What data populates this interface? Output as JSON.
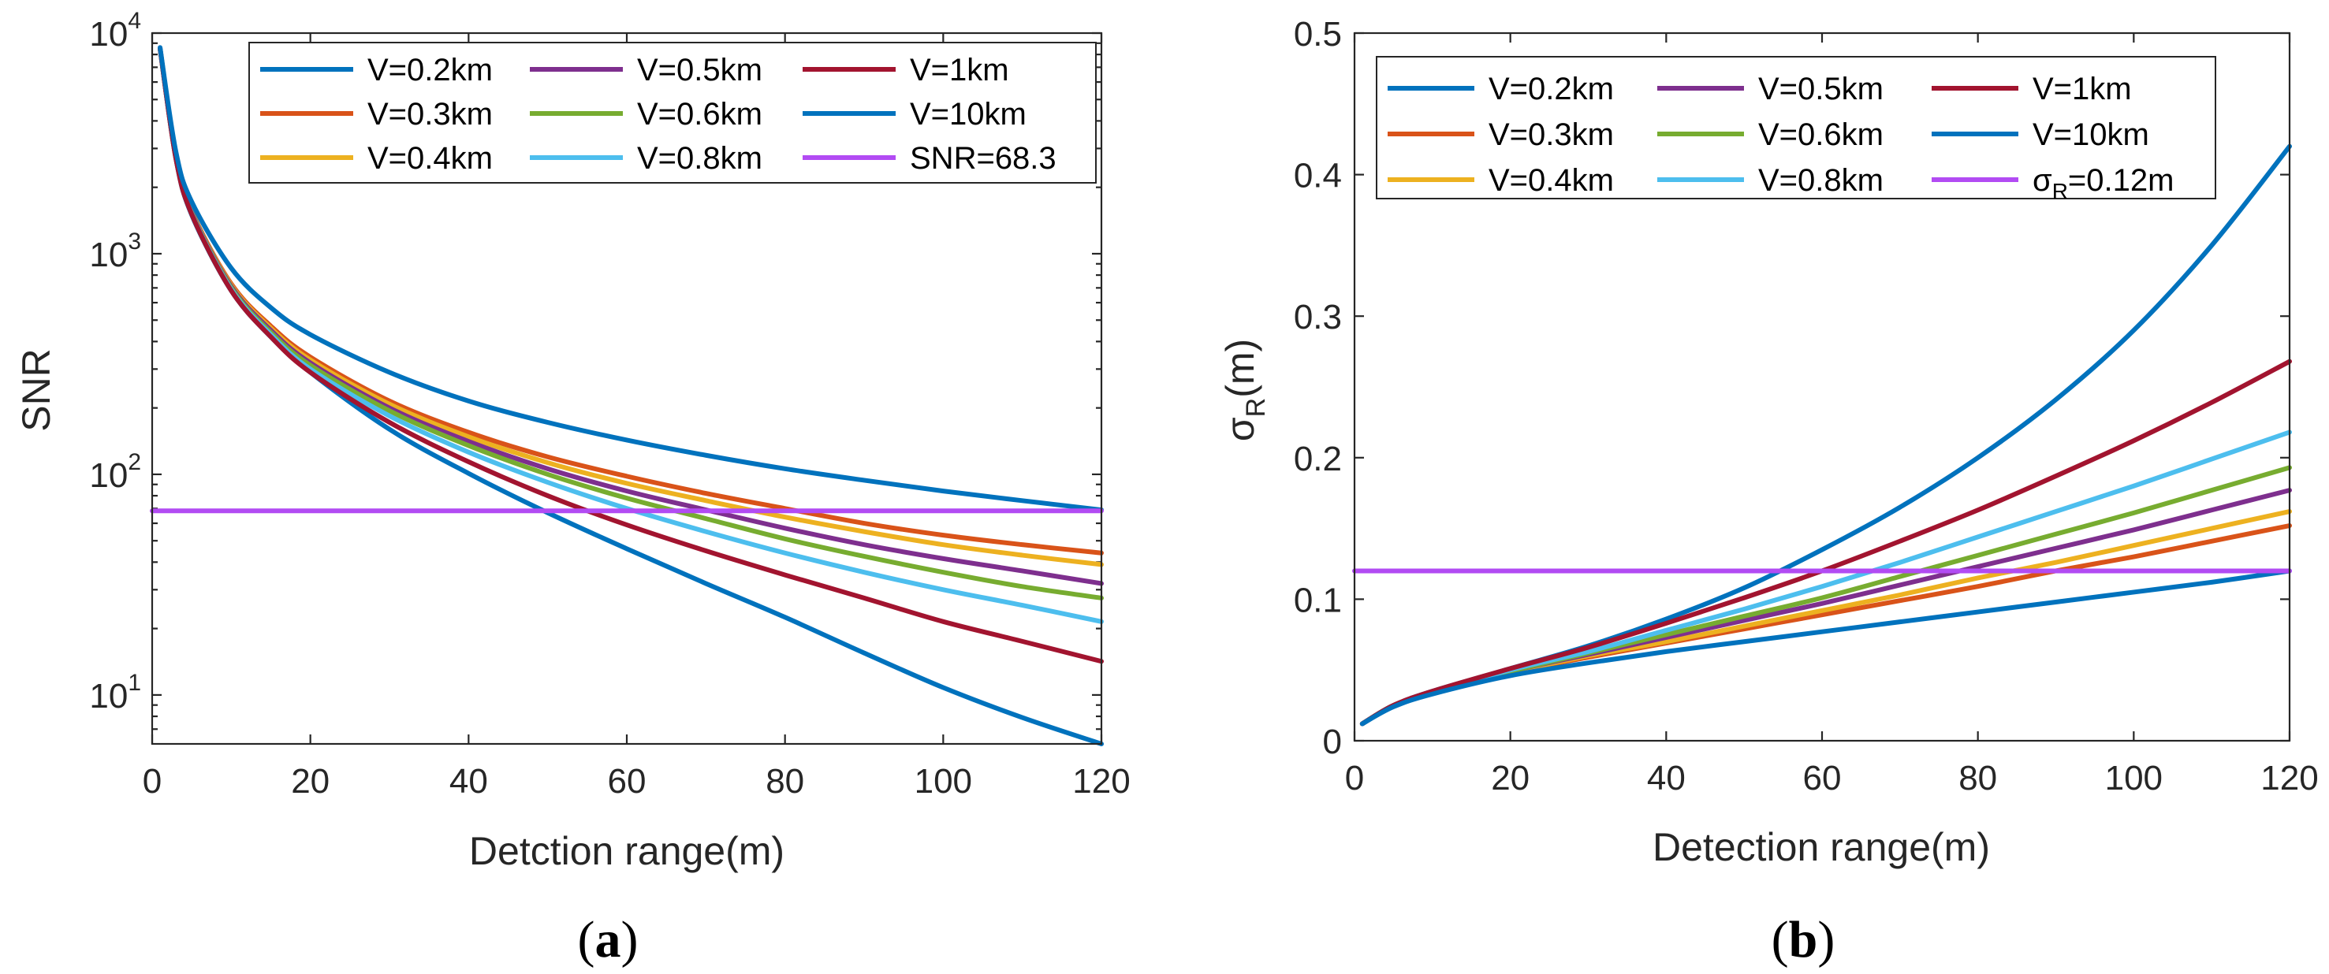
{
  "figure": {
    "caption_a": "a",
    "caption_b": "b"
  },
  "chart_data": [
    {
      "id": "a",
      "type": "line",
      "title": "",
      "xlabel": "Detction range(m)",
      "ylabel": "SNR",
      "yscale": "log",
      "xlim": [
        0,
        120
      ],
      "ylim": [
        6,
        10000
      ],
      "xticks": [
        0,
        20,
        40,
        60,
        80,
        100,
        120
      ],
      "yticks": [
        {
          "value": 10,
          "base": "10",
          "exp": "1"
        },
        {
          "value": 100,
          "base": "10",
          "exp": "2"
        },
        {
          "value": 1000,
          "base": "10",
          "exp": "3"
        },
        {
          "value": 10000,
          "base": "10",
          "exp": "4"
        }
      ],
      "legend_position": "top-right",
      "series": [
        {
          "name": "V=0.2km",
          "color": "#0072BD",
          "x": [
            1,
            3,
            5,
            10,
            15,
            20,
            30,
            40,
            50,
            60,
            70,
            80,
            90,
            100,
            110,
            120
          ],
          "values": [
            8500,
            2700,
            1500,
            680,
            420,
            290,
            160,
            101,
            67,
            46,
            32,
            22.5,
            15.5,
            10.8,
            7.9,
            5.9
          ]
        },
        {
          "name": "V=0.3km",
          "color": "#D95319",
          "x": [
            1,
            3,
            5,
            10,
            15,
            20,
            30,
            40,
            50,
            60,
            70,
            80,
            90,
            100,
            110,
            120
          ],
          "values": [
            8500,
            2750,
            1560,
            730,
            470,
            340,
            215,
            155,
            120,
            98,
            82,
            70,
            60,
            53,
            48,
            44
          ]
        },
        {
          "name": "V=0.4km",
          "color": "#EDB120",
          "x": [
            1,
            3,
            5,
            10,
            15,
            20,
            30,
            40,
            50,
            60,
            70,
            80,
            90,
            100,
            110,
            120
          ],
          "values": [
            8500,
            2740,
            1550,
            720,
            460,
            330,
            208,
            148,
            113,
            91,
            76,
            64,
            55,
            48,
            43,
            39
          ]
        },
        {
          "name": "V=0.5km",
          "color": "#7E2F8E",
          "x": [
            1,
            3,
            5,
            10,
            15,
            20,
            30,
            40,
            50,
            60,
            70,
            80,
            90,
            100,
            110,
            120
          ],
          "values": [
            8500,
            2730,
            1540,
            710,
            450,
            320,
            200,
            141,
            106,
            84,
            69,
            57,
            48,
            41.5,
            36.5,
            32
          ]
        },
        {
          "name": "V=0.6km",
          "color": "#77AC30",
          "x": [
            1,
            3,
            5,
            10,
            15,
            20,
            30,
            40,
            50,
            60,
            70,
            80,
            90,
            100,
            110,
            120
          ],
          "values": [
            8500,
            2720,
            1530,
            700,
            440,
            312,
            194,
            135,
            100,
            78,
            63,
            51,
            42.5,
            36,
            31,
            27.5
          ]
        },
        {
          "name": "V=0.8km",
          "color": "#4DBEEE",
          "x": [
            1,
            3,
            5,
            10,
            15,
            20,
            30,
            40,
            50,
            60,
            70,
            80,
            90,
            100,
            110,
            120
          ],
          "values": [
            8500,
            2710,
            1520,
            690,
            430,
            300,
            184,
            126,
            92,
            70,
            55,
            44,
            36,
            30,
            25.5,
            21.5
          ]
        },
        {
          "name": "V=1km",
          "color": "#A2142F",
          "x": [
            1,
            3,
            5,
            10,
            15,
            20,
            30,
            40,
            50,
            60,
            70,
            80,
            90,
            100,
            110,
            120
          ],
          "values": [
            8500,
            2700,
            1510,
            680,
            420,
            290,
            172,
            114,
            80,
            59,
            45,
            35,
            27.5,
            21.5,
            17.5,
            14.2
          ]
        },
        {
          "name": "V=10km",
          "color": "#0072BD",
          "x": [
            1,
            3,
            5,
            10,
            15,
            20,
            30,
            40,
            50,
            60,
            70,
            80,
            90,
            100,
            110,
            120
          ],
          "values": [
            8600,
            2900,
            1720,
            860,
            570,
            430,
            290,
            215,
            172,
            143,
            122,
            106,
            94,
            84,
            76,
            69
          ]
        },
        {
          "name": "SNR=68.3",
          "color": "#B24BF3",
          "x": [
            0,
            120
          ],
          "values": [
            68.3,
            68.3
          ]
        }
      ]
    },
    {
      "id": "b",
      "type": "line",
      "title": "",
      "xlabel": "Detection range(m)",
      "ylabel": "σR(m)",
      "ylabel_main": "σ",
      "ylabel_sub": "R",
      "ylabel_tail": "(m)",
      "xlim": [
        0,
        120
      ],
      "ylim": [
        0,
        0.5
      ],
      "xticks": [
        0,
        20,
        40,
        60,
        80,
        100,
        120
      ],
      "yticks": [
        0,
        0.1,
        0.2,
        0.3,
        0.4,
        0.5
      ],
      "legend_position": "top-left",
      "series": [
        {
          "name": "V=0.2km",
          "color": "#0072BD",
          "x": [
            1,
            5,
            10,
            20,
            30,
            40,
            50,
            60,
            70,
            80,
            90,
            100,
            110,
            120
          ],
          "values": [
            0.012,
            0.025,
            0.035,
            0.051,
            0.067,
            0.086,
            0.108,
            0.135,
            0.165,
            0.2,
            0.241,
            0.29,
            0.35,
            0.42
          ]
        },
        {
          "name": "V=0.3km",
          "color": "#D95319",
          "x": [
            1,
            5,
            10,
            20,
            30,
            40,
            50,
            60,
            70,
            80,
            90,
            100,
            110,
            120
          ],
          "values": [
            0.012,
            0.025,
            0.034,
            0.048,
            0.059,
            0.069,
            0.079,
            0.089,
            0.099,
            0.109,
            0.12,
            0.13,
            0.141,
            0.152
          ]
        },
        {
          "name": "V=0.4km",
          "color": "#EDB120",
          "x": [
            1,
            5,
            10,
            20,
            30,
            40,
            50,
            60,
            70,
            80,
            90,
            100,
            110,
            120
          ],
          "values": [
            0.012,
            0.025,
            0.034,
            0.048,
            0.06,
            0.07,
            0.081,
            0.092,
            0.103,
            0.115,
            0.126,
            0.138,
            0.15,
            0.162
          ]
        },
        {
          "name": "V=0.5km",
          "color": "#7E2F8E",
          "x": [
            1,
            5,
            10,
            20,
            30,
            40,
            50,
            60,
            70,
            80,
            90,
            100,
            110,
            120
          ],
          "values": [
            0.012,
            0.025,
            0.034,
            0.049,
            0.061,
            0.073,
            0.085,
            0.097,
            0.11,
            0.123,
            0.136,
            0.149,
            0.163,
            0.177
          ]
        },
        {
          "name": "V=0.6km",
          "color": "#77AC30",
          "x": [
            1,
            5,
            10,
            20,
            30,
            40,
            50,
            60,
            70,
            80,
            90,
            100,
            110,
            120
          ],
          "values": [
            0.012,
            0.025,
            0.034,
            0.049,
            0.062,
            0.075,
            0.088,
            0.101,
            0.116,
            0.131,
            0.146,
            0.161,
            0.177,
            0.193
          ]
        },
        {
          "name": "V=0.8km",
          "color": "#4DBEEE",
          "x": [
            1,
            5,
            10,
            20,
            30,
            40,
            50,
            60,
            70,
            80,
            90,
            100,
            110,
            120
          ],
          "values": [
            0.012,
            0.025,
            0.034,
            0.05,
            0.063,
            0.078,
            0.093,
            0.109,
            0.126,
            0.144,
            0.162,
            0.18,
            0.199,
            0.218
          ]
        },
        {
          "name": "V=1km",
          "color": "#A2142F",
          "x": [
            1,
            5,
            10,
            20,
            30,
            40,
            50,
            60,
            70,
            80,
            90,
            100,
            110,
            120
          ],
          "values": [
            0.012,
            0.025,
            0.035,
            0.051,
            0.066,
            0.083,
            0.101,
            0.12,
            0.141,
            0.163,
            0.187,
            0.212,
            0.239,
            0.268
          ]
        },
        {
          "name": "V=10km",
          "color": "#0072BD",
          "x": [
            1,
            5,
            10,
            20,
            30,
            40,
            50,
            60,
            70,
            80,
            90,
            100,
            110,
            120
          ],
          "values": [
            0.012,
            0.024,
            0.033,
            0.046,
            0.055,
            0.063,
            0.07,
            0.077,
            0.084,
            0.091,
            0.098,
            0.105,
            0.112,
            0.12
          ]
        },
        {
          "name": "σR=0.12m",
          "label_main": "σ",
          "label_sub": "R",
          "label_tail": "=0.12m",
          "color": "#B24BF3",
          "x": [
            0,
            120
          ],
          "values": [
            0.12,
            0.12
          ]
        }
      ]
    }
  ]
}
